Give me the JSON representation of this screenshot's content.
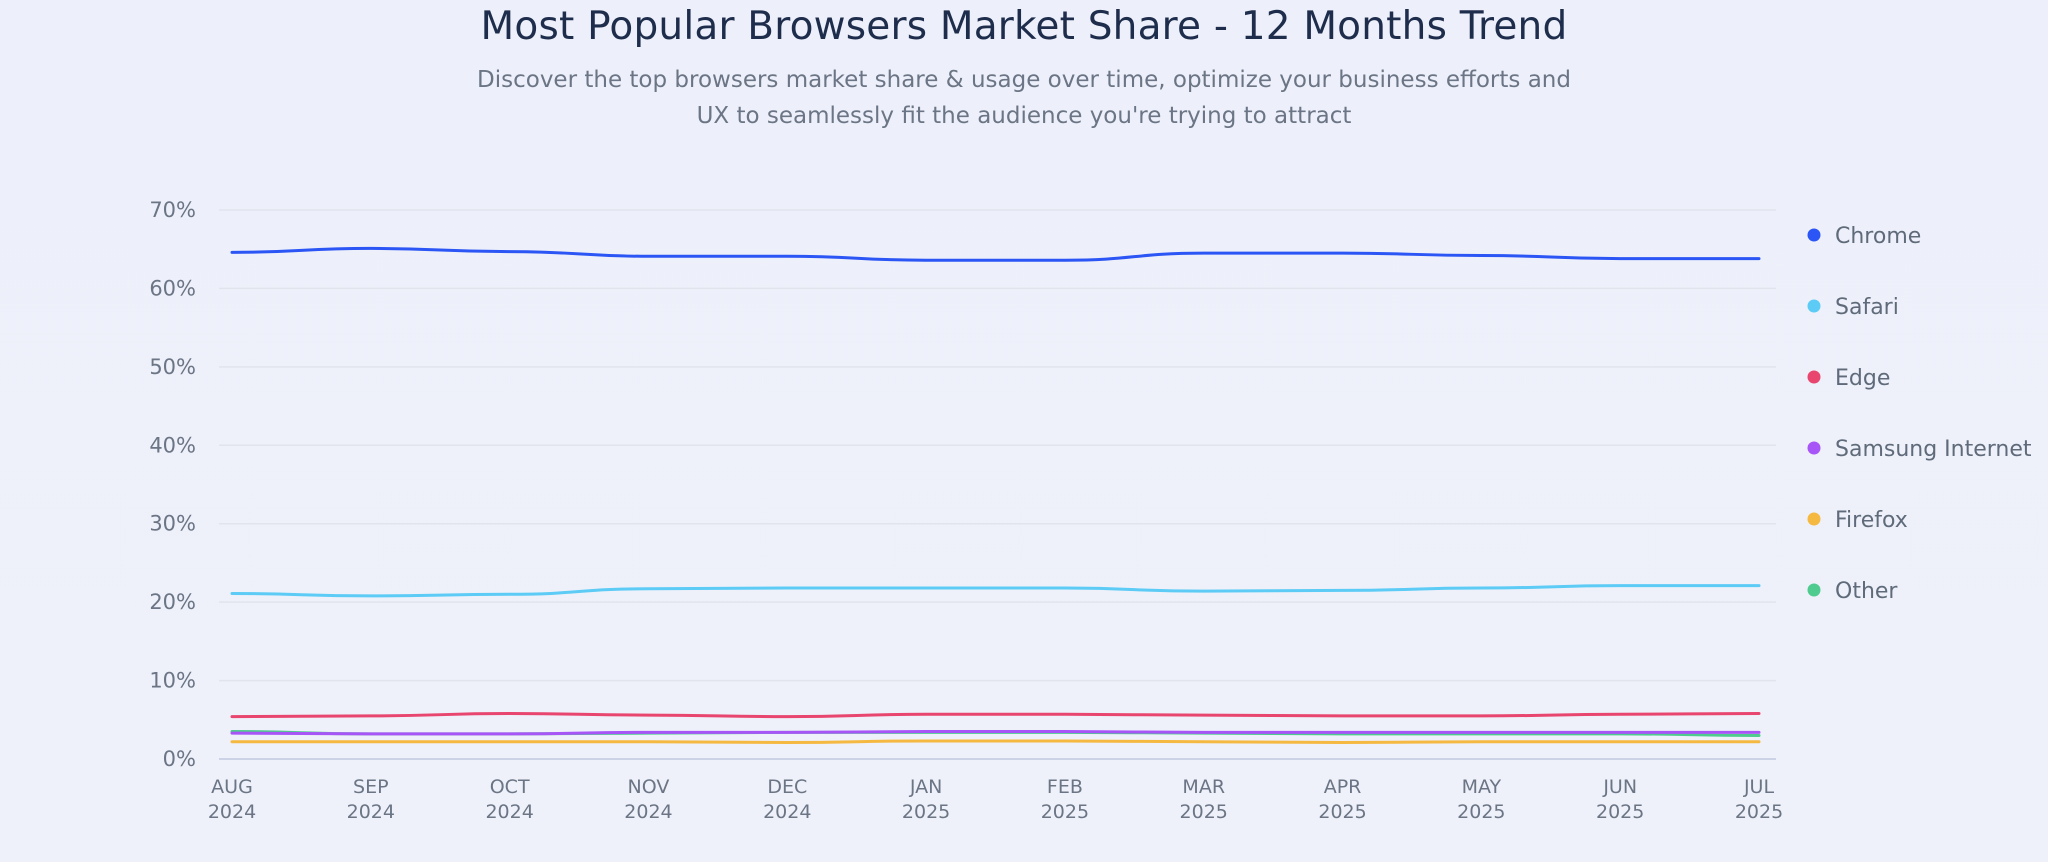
{
  "chart_data": {
    "type": "line",
    "title": "Most Popular Browsers Market Share - 12 Months Trend",
    "subtitle": "Discover the top browsers market share & usage over time, optimize your business efforts and UX to seamlessly fit the audience you're trying to attract",
    "categories": [
      [
        "AUG",
        "2024"
      ],
      [
        "SEP",
        "2024"
      ],
      [
        "OCT",
        "2024"
      ],
      [
        "NOV",
        "2024"
      ],
      [
        "DEC",
        "2024"
      ],
      [
        "JAN",
        "2025"
      ],
      [
        "FEB",
        "2025"
      ],
      [
        "MAR",
        "2025"
      ],
      [
        "APR",
        "2025"
      ],
      [
        "MAY",
        "2025"
      ],
      [
        "JUN",
        "2025"
      ],
      [
        "JUL",
        "2025"
      ]
    ],
    "ylim": [
      0,
      70
    ],
    "yticks": [
      "0%",
      "10%",
      "20%",
      "30%",
      "40%",
      "50%",
      "60%",
      "70%"
    ],
    "grid": true,
    "legend_position": "right",
    "series": [
      {
        "name": "Chrome",
        "color": "#2b55f5",
        "values": [
          64.6,
          65.1,
          64.7,
          64.1,
          64.1,
          63.6,
          63.6,
          64.5,
          64.5,
          64.2,
          63.8,
          63.8
        ]
      },
      {
        "name": "Safari",
        "color": "#5ccbf5",
        "values": [
          21.1,
          20.8,
          21.0,
          21.7,
          21.8,
          21.8,
          21.8,
          21.4,
          21.5,
          21.8,
          22.1,
          22.1
        ]
      },
      {
        "name": "Edge",
        "color": "#e8466e",
        "values": [
          5.4,
          5.5,
          5.8,
          5.6,
          5.4,
          5.7,
          5.7,
          5.6,
          5.5,
          5.5,
          5.7,
          5.8
        ]
      },
      {
        "name": "Samsung Internet",
        "color": "#a855f7",
        "values": [
          3.3,
          3.2,
          3.2,
          3.4,
          3.4,
          3.5,
          3.5,
          3.4,
          3.4,
          3.4,
          3.4,
          3.4
        ]
      },
      {
        "name": "Firefox",
        "color": "#f5b942",
        "values": [
          2.2,
          2.2,
          2.2,
          2.2,
          2.1,
          2.3,
          2.3,
          2.2,
          2.1,
          2.2,
          2.2,
          2.2
        ]
      },
      {
        "name": "Other",
        "color": "#4fcb8f",
        "values": [
          3.5,
          3.2,
          3.2,
          3.3,
          3.4,
          3.4,
          3.4,
          3.3,
          3.2,
          3.2,
          3.2,
          3.0
        ]
      }
    ]
  }
}
